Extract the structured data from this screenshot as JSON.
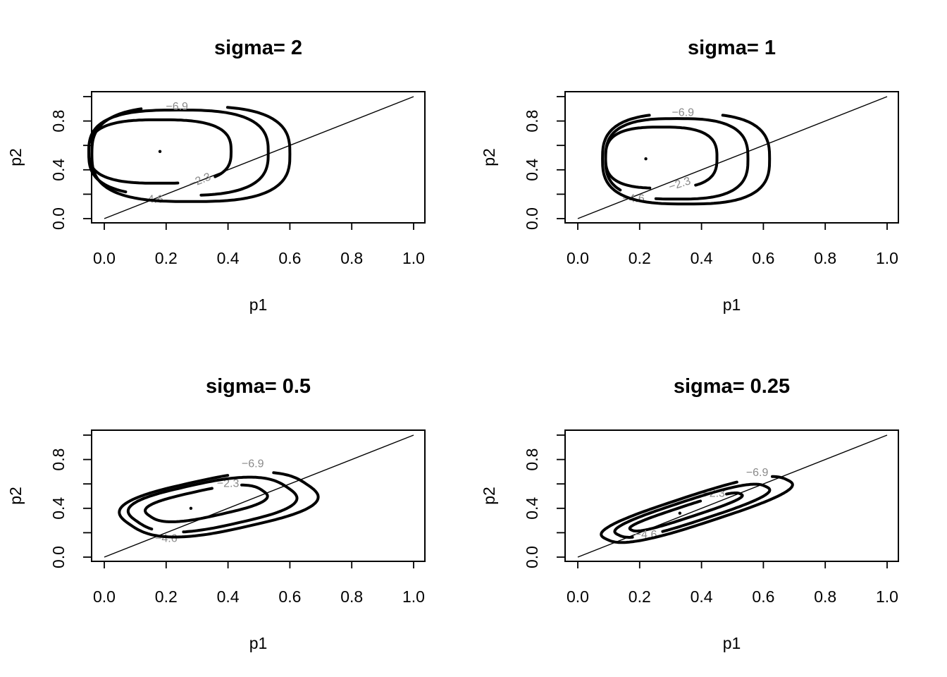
{
  "chart_data": [
    {
      "type": "contour",
      "title": "sigma= 2",
      "xlabel": "p1",
      "ylabel": "p2",
      "xlim": [
        0,
        1
      ],
      "ylim": [
        0,
        1
      ],
      "xticks": [
        "0.0",
        "0.2",
        "0.4",
        "0.6",
        "0.8",
        "1.0"
      ],
      "yticks": [
        "0.0",
        "0.4",
        "0.8"
      ],
      "reference_line": {
        "from": [
          0,
          0
        ],
        "to": [
          1,
          1
        ]
      },
      "mode_point": [
        0.18,
        0.55
      ],
      "contours": [
        {
          "level": "-2.3",
          "label": "−2.3",
          "center": [
            0.18,
            0.55
          ],
          "rx": 0.23,
          "ry": 0.26,
          "tilt": 0,
          "label_at": [
            0.31,
            0.31
          ],
          "label_angle": -22
        },
        {
          "level": "-4.6",
          "label": "−4.6",
          "center": [
            0.24,
            0.54
          ],
          "rx": 0.29,
          "ry": 0.35,
          "tilt": 0,
          "label_at": [
            0.155,
            0.155
          ],
          "label_angle": 0
        },
        {
          "level": "-6.9",
          "label": "−6.9",
          "center": [
            0.28,
            0.53
          ],
          "rx": 0.32,
          "ry": 0.39,
          "tilt": 0,
          "label_at": [
            0.235,
            0.915
          ],
          "label_angle": 0
        }
      ]
    },
    {
      "type": "contour",
      "title": "sigma= 1",
      "xlabel": "p1",
      "ylabel": "p2",
      "xlim": [
        0,
        1
      ],
      "ylim": [
        0,
        1
      ],
      "xticks": [
        "0.0",
        "0.2",
        "0.4",
        "0.6",
        "0.8",
        "1.0"
      ],
      "yticks": [
        "0.0",
        "0.4",
        "0.8"
      ],
      "reference_line": {
        "from": [
          0,
          0
        ],
        "to": [
          1,
          1
        ]
      },
      "mode_point": [
        0.22,
        0.49
      ],
      "contours": [
        {
          "level": "-2.3",
          "label": "−2.3",
          "center": [
            0.27,
            0.5
          ],
          "rx": 0.18,
          "ry": 0.25,
          "tilt": 0,
          "label_at": [
            0.33,
            0.28
          ],
          "label_angle": -18
        },
        {
          "level": "-4.6",
          "label": "−4.6",
          "center": [
            0.32,
            0.49
          ],
          "rx": 0.23,
          "ry": 0.33,
          "tilt": 0,
          "label_at": [
            0.18,
            0.16
          ],
          "label_angle": 0
        },
        {
          "level": "-6.9",
          "label": "−6.9",
          "center": [
            0.35,
            0.49
          ],
          "rx": 0.27,
          "ry": 0.37,
          "tilt": 0,
          "label_at": [
            0.34,
            0.865
          ],
          "label_angle": 0
        }
      ]
    },
    {
      "type": "contour",
      "title": "sigma= 0.5",
      "xlabel": "p1",
      "ylabel": "p2",
      "xlim": [
        0,
        1
      ],
      "ylim": [
        0,
        1
      ],
      "xticks": [
        "0.0",
        "0.2",
        "0.4",
        "0.6",
        "0.8",
        "1.0"
      ],
      "yticks": [
        "0.0",
        "0.4",
        "0.8"
      ],
      "reference_line": {
        "from": [
          0,
          0
        ],
        "to": [
          1,
          1
        ]
      },
      "mode_point": [
        0.28,
        0.4
      ],
      "contours": [
        {
          "level": "-2.3",
          "label": "−2.3",
          "center": [
            0.33,
            0.44
          ],
          "rx": 0.21,
          "ry": 0.1,
          "tilt": 30,
          "label_at": [
            0.4,
            0.6
          ],
          "label_angle": 0
        },
        {
          "level": "-4.6",
          "label": "−4.6",
          "center": [
            0.35,
            0.43
          ],
          "rx": 0.28,
          "ry": 0.17,
          "tilt": 30,
          "label_at": [
            0.2,
            0.15
          ],
          "label_angle": 0
        },
        {
          "level": "-6.9",
          "label": "−6.9",
          "center": [
            0.37,
            0.43
          ],
          "rx": 0.33,
          "ry": 0.2,
          "tilt": 30,
          "label_at": [
            0.48,
            0.76
          ],
          "label_angle": 0
        }
      ]
    },
    {
      "type": "contour",
      "title": "sigma= 0.25",
      "xlabel": "p1",
      "ylabel": "p2",
      "xlim": [
        0,
        1
      ],
      "ylim": [
        0,
        1
      ],
      "xticks": [
        "0.0",
        "0.2",
        "0.4",
        "0.6",
        "0.8",
        "1.0"
      ],
      "yticks": [
        "0.0",
        "0.4",
        "0.8"
      ],
      "reference_line": {
        "from": [
          0,
          0
        ],
        "to": [
          1,
          1
        ]
      },
      "mode_point": [
        0.33,
        0.36
      ],
      "contours": [
        {
          "level": "-2.3",
          "label": "−2.3",
          "center": [
            0.35,
            0.37
          ],
          "rx": 0.23,
          "ry": 0.04,
          "tilt": 40,
          "label_at": [
            0.44,
            0.52
          ],
          "label_angle": 0
        },
        {
          "level": "-4.6",
          "label": "−4.6",
          "center": [
            0.37,
            0.38
          ],
          "rx": 0.31,
          "ry": 0.075,
          "tilt": 40,
          "label_at": [
            0.22,
            0.18
          ],
          "label_angle": 0
        },
        {
          "level": "-6.9",
          "label": "−6.9",
          "center": [
            0.385,
            0.39
          ],
          "rx": 0.38,
          "ry": 0.1,
          "tilt": 40,
          "label_at": [
            0.58,
            0.69
          ],
          "label_angle": 0
        }
      ]
    }
  ]
}
